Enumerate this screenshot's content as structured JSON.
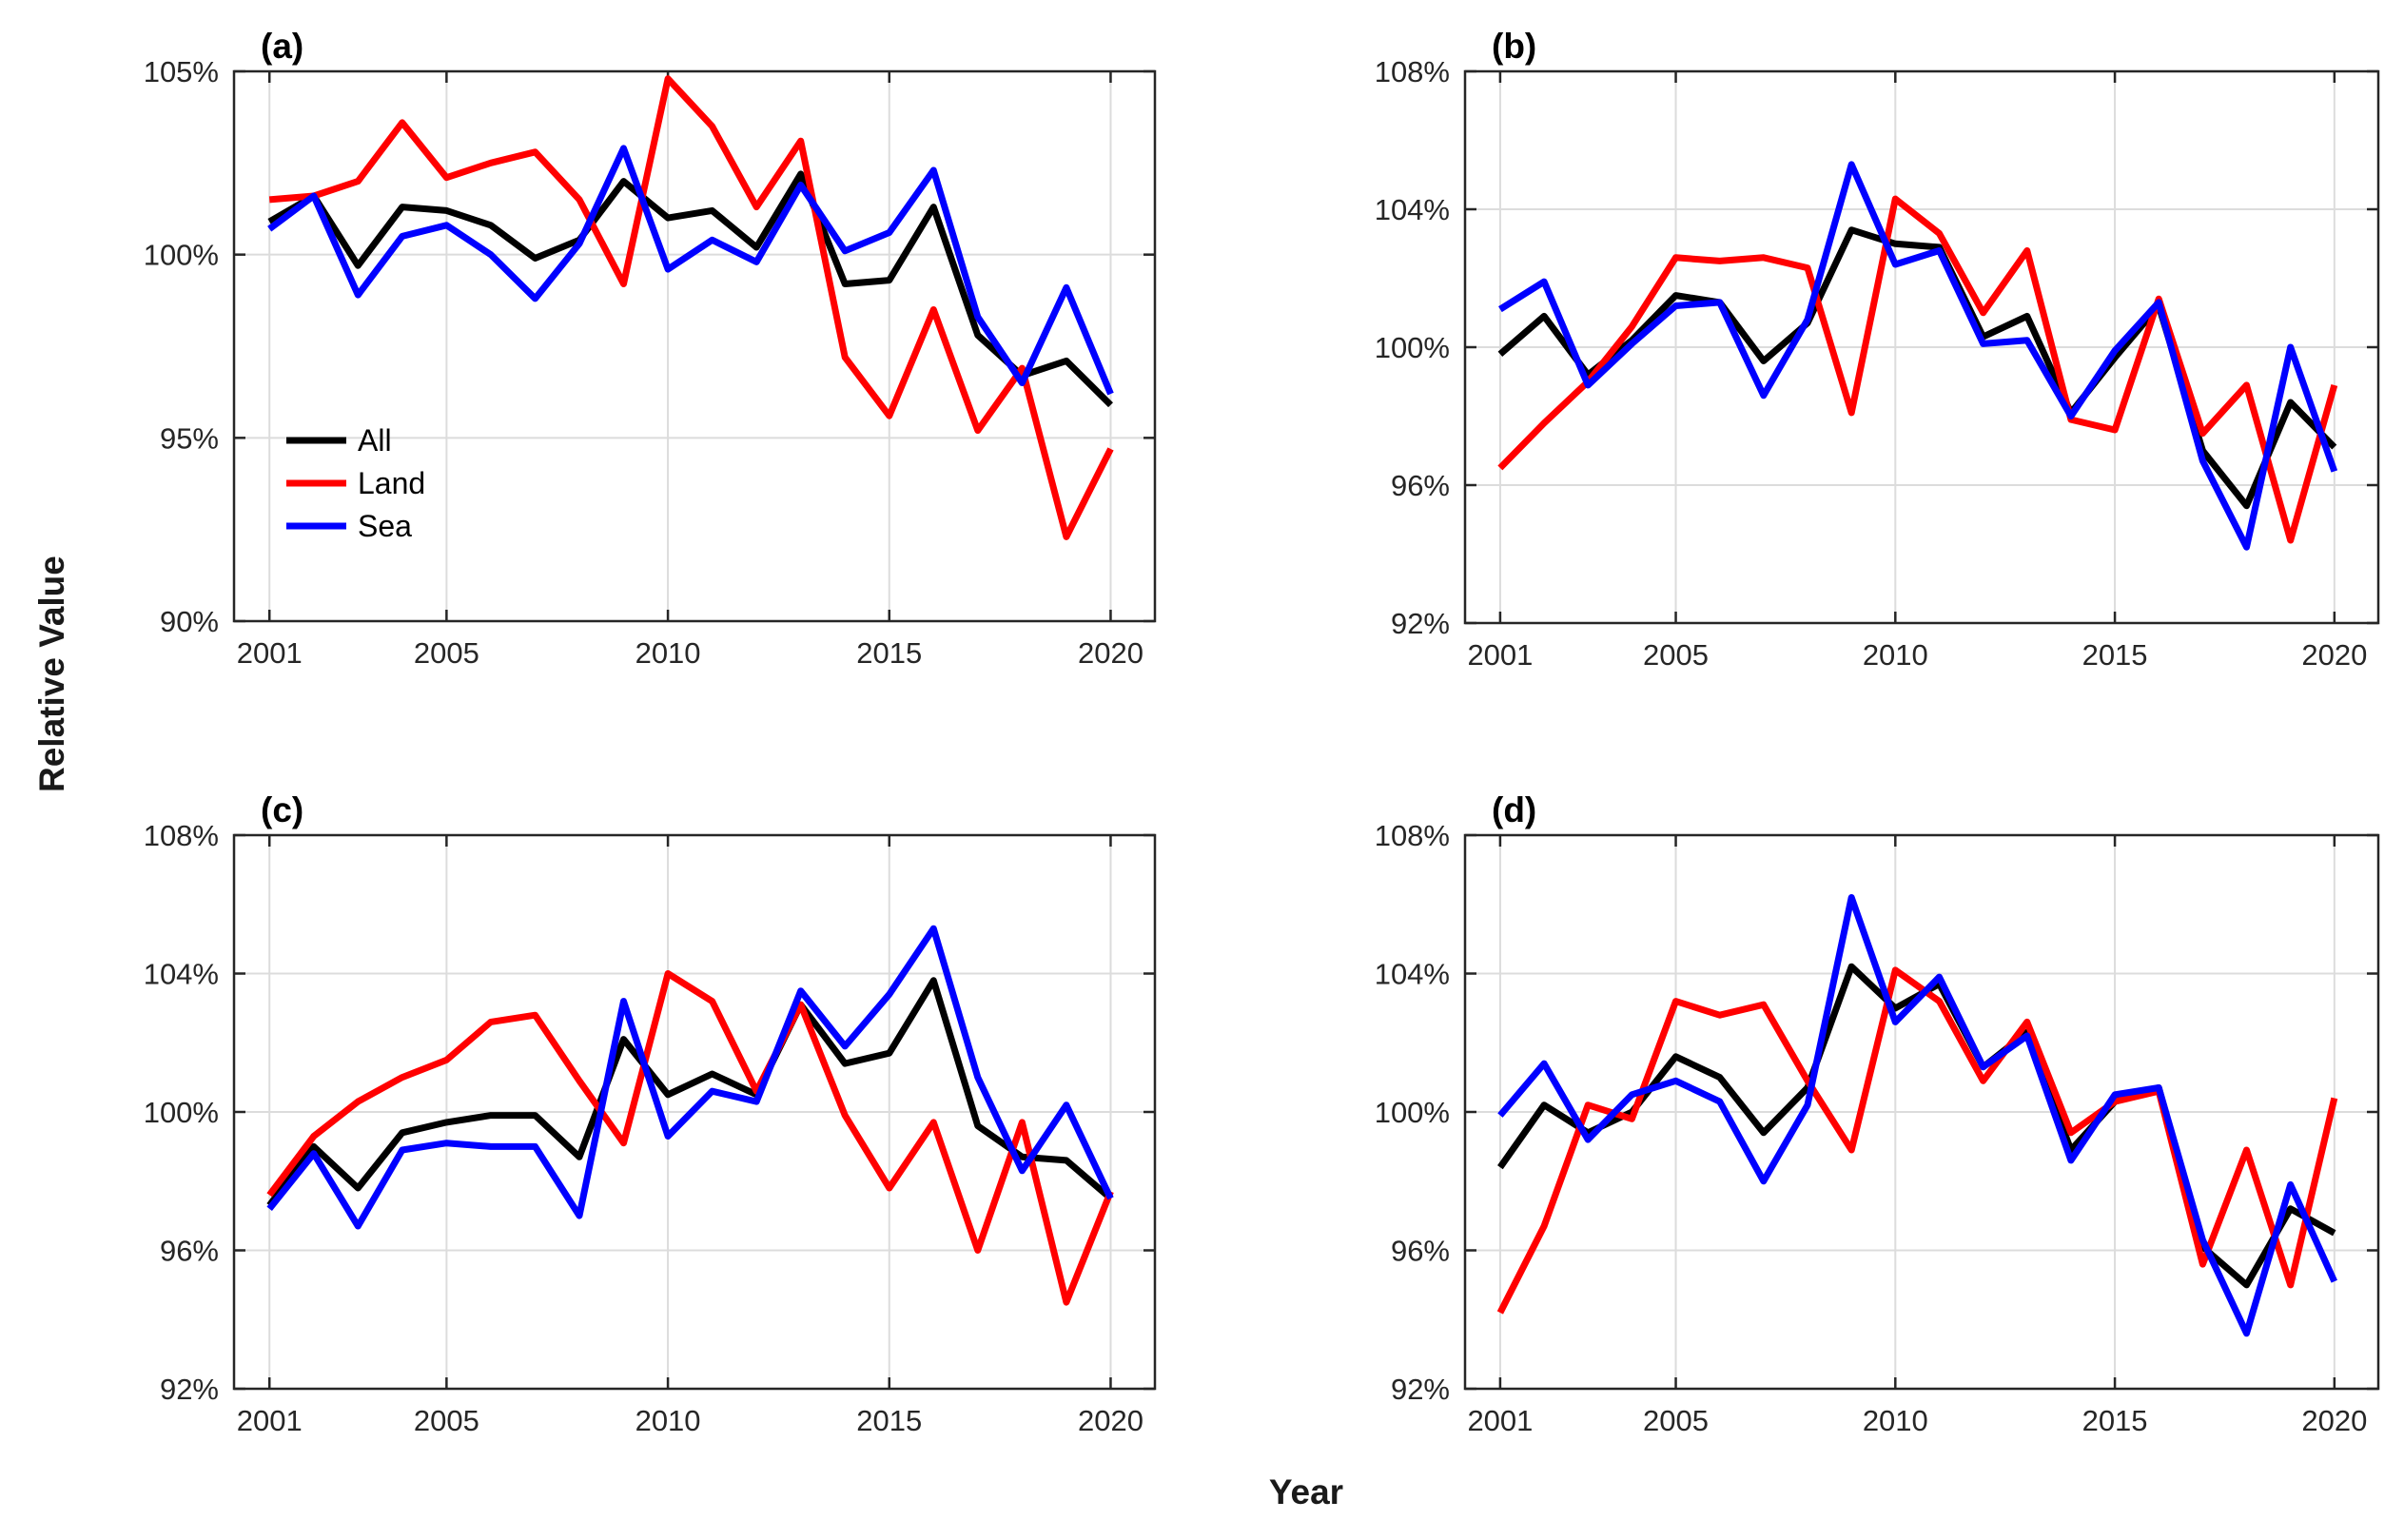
{
  "figure": {
    "ylabel": "Relative Value",
    "xlabel": "Year",
    "background": "#ffffff",
    "axis_color": "#262626",
    "grid_color": "#dcdcdc",
    "legend": {
      "location": "lower-left of panel (a)",
      "entries": [
        {
          "label": "All",
          "color": "#000000"
        },
        {
          "label": "Land",
          "color": "#ff0000"
        },
        {
          "label": "Sea",
          "color": "#0000ff"
        }
      ]
    }
  },
  "chart_data": [
    {
      "type": "line",
      "panel": "a",
      "title": "(a)",
      "x": [
        2001,
        2002,
        2003,
        2004,
        2005,
        2006,
        2007,
        2008,
        2009,
        2010,
        2011,
        2012,
        2013,
        2014,
        2015,
        2016,
        2017,
        2018,
        2019,
        2020
      ],
      "xticks": [
        2001,
        2005,
        2010,
        2015,
        2020
      ],
      "xtick_labels": [
        "2001",
        "2005",
        "2010",
        "2015",
        "2020"
      ],
      "ylim": [
        90,
        105
      ],
      "yticks": [
        90,
        95,
        100,
        105
      ],
      "ytick_labels": [
        "90%",
        "95%",
        "100%",
        "105%"
      ],
      "grid": true,
      "show_legend": true,
      "series": [
        {
          "name": "All",
          "color": "#000000",
          "values": [
            100.9,
            101.6,
            99.7,
            101.3,
            101.2,
            100.8,
            99.9,
            100.4,
            102.0,
            101.0,
            101.2,
            100.2,
            102.2,
            99.2,
            99.3,
            101.3,
            97.8,
            96.7,
            97.1,
            95.9
          ]
        },
        {
          "name": "Land",
          "color": "#ff0000",
          "values": [
            101.5,
            101.6,
            102.0,
            103.6,
            102.1,
            102.5,
            102.8,
            101.5,
            99.2,
            104.8,
            103.5,
            101.3,
            103.1,
            97.2,
            95.6,
            98.5,
            95.2,
            96.9,
            92.3,
            94.7
          ]
        },
        {
          "name": "Sea",
          "color": "#0000ff",
          "values": [
            100.7,
            101.6,
            98.9,
            100.5,
            100.8,
            100.0,
            98.8,
            100.3,
            102.9,
            99.6,
            100.4,
            99.8,
            101.9,
            100.1,
            100.6,
            102.3,
            98.3,
            96.5,
            99.1,
            96.2
          ]
        }
      ]
    },
    {
      "type": "line",
      "panel": "b",
      "title": "(b)",
      "x": [
        2001,
        2002,
        2003,
        2004,
        2005,
        2006,
        2007,
        2008,
        2009,
        2010,
        2011,
        2012,
        2013,
        2014,
        2015,
        2016,
        2017,
        2018,
        2019,
        2020
      ],
      "xticks": [
        2001,
        2005,
        2010,
        2015,
        2020
      ],
      "xtick_labels": [
        "2001",
        "2005",
        "2010",
        "2015",
        "2020"
      ],
      "ylim": [
        92,
        108
      ],
      "yticks": [
        92,
        96,
        100,
        104,
        108
      ],
      "ytick_labels": [
        "92%",
        "96%",
        "100%",
        "104%",
        "108%"
      ],
      "grid": true,
      "show_legend": false,
      "series": [
        {
          "name": "All",
          "color": "#000000",
          "values": [
            99.8,
            100.9,
            99.2,
            100.2,
            101.5,
            101.3,
            99.6,
            100.7,
            103.4,
            103.0,
            102.9,
            100.3,
            100.9,
            98.1,
            99.7,
            101.2,
            97.0,
            95.4,
            98.4,
            97.1
          ]
        },
        {
          "name": "Land",
          "color": "#ff0000",
          "values": [
            96.5,
            97.8,
            99.0,
            100.6,
            102.6,
            102.5,
            102.6,
            102.3,
            98.1,
            104.3,
            103.3,
            101.0,
            102.8,
            97.9,
            97.6,
            101.4,
            97.5,
            98.9,
            94.4,
            98.9
          ]
        },
        {
          "name": "Sea",
          "color": "#0000ff",
          "values": [
            101.1,
            101.9,
            98.9,
            100.1,
            101.2,
            101.3,
            98.6,
            100.8,
            105.3,
            102.4,
            102.8,
            100.1,
            100.2,
            98.0,
            99.9,
            101.3,
            96.7,
            94.2,
            100.0,
            96.4
          ]
        }
      ]
    },
    {
      "type": "line",
      "panel": "c",
      "title": "(c)",
      "x": [
        2001,
        2002,
        2003,
        2004,
        2005,
        2006,
        2007,
        2008,
        2009,
        2010,
        2011,
        2012,
        2013,
        2014,
        2015,
        2016,
        2017,
        2018,
        2019,
        2020
      ],
      "xticks": [
        2001,
        2005,
        2010,
        2015,
        2020
      ],
      "xtick_labels": [
        "2001",
        "2005",
        "2010",
        "2015",
        "2020"
      ],
      "ylim": [
        92,
        108
      ],
      "yticks": [
        92,
        96,
        100,
        104,
        108
      ],
      "ytick_labels": [
        "92%",
        "96%",
        "100%",
        "104%",
        "108%"
      ],
      "grid": true,
      "show_legend": false,
      "series": [
        {
          "name": "All",
          "color": "#000000",
          "values": [
            97.3,
            99.0,
            97.8,
            99.4,
            99.7,
            99.9,
            99.9,
            98.7,
            102.1,
            100.5,
            101.1,
            100.5,
            103.1,
            101.4,
            101.7,
            103.8,
            99.6,
            98.7,
            98.6,
            97.5
          ]
        },
        {
          "name": "Land",
          "color": "#ff0000",
          "values": [
            97.6,
            99.3,
            100.3,
            101.0,
            101.5,
            102.6,
            102.8,
            100.9,
            99.1,
            104.0,
            103.2,
            100.6,
            103.1,
            99.9,
            97.8,
            99.7,
            96.0,
            99.7,
            94.5,
            97.7
          ]
        },
        {
          "name": "Sea",
          "color": "#0000ff",
          "values": [
            97.2,
            98.8,
            96.7,
            98.9,
            99.1,
            99.0,
            99.0,
            97.0,
            103.2,
            99.3,
            100.6,
            100.3,
            103.5,
            101.9,
            103.4,
            105.3,
            101.0,
            98.3,
            100.2,
            97.5
          ]
        }
      ]
    },
    {
      "type": "line",
      "panel": "d",
      "title": "(d)",
      "x": [
        2001,
        2002,
        2003,
        2004,
        2005,
        2006,
        2007,
        2008,
        2009,
        2010,
        2011,
        2012,
        2013,
        2014,
        2015,
        2016,
        2017,
        2018,
        2019,
        2020
      ],
      "xticks": [
        2001,
        2005,
        2010,
        2015,
        2020
      ],
      "xtick_labels": [
        "2001",
        "2005",
        "2010",
        "2015",
        "2020"
      ],
      "ylim": [
        92,
        108
      ],
      "yticks": [
        92,
        96,
        100,
        104,
        108
      ],
      "ytick_labels": [
        "92%",
        "96%",
        "100%",
        "104%",
        "108%"
      ],
      "grid": true,
      "show_legend": false,
      "series": [
        {
          "name": "All",
          "color": "#000000",
          "values": [
            98.4,
            100.2,
            99.4,
            100.0,
            101.6,
            101.0,
            99.4,
            100.7,
            104.2,
            103.0,
            103.7,
            101.3,
            102.3,
            98.9,
            100.3,
            100.7,
            96.1,
            95.0,
            97.2,
            96.5
          ]
        },
        {
          "name": "Land",
          "color": "#ff0000",
          "values": [
            94.2,
            96.7,
            100.2,
            99.8,
            103.2,
            102.8,
            103.1,
            100.9,
            98.9,
            104.1,
            103.2,
            100.9,
            102.6,
            99.4,
            100.3,
            100.6,
            95.6,
            98.9,
            95.0,
            100.4
          ]
        },
        {
          "name": "Sea",
          "color": "#0000ff",
          "values": [
            99.9,
            101.4,
            99.2,
            100.5,
            100.9,
            100.3,
            98.0,
            100.2,
            106.2,
            102.6,
            103.9,
            101.3,
            102.2,
            98.6,
            100.5,
            100.7,
            96.3,
            93.6,
            97.9,
            95.1
          ]
        }
      ]
    }
  ]
}
